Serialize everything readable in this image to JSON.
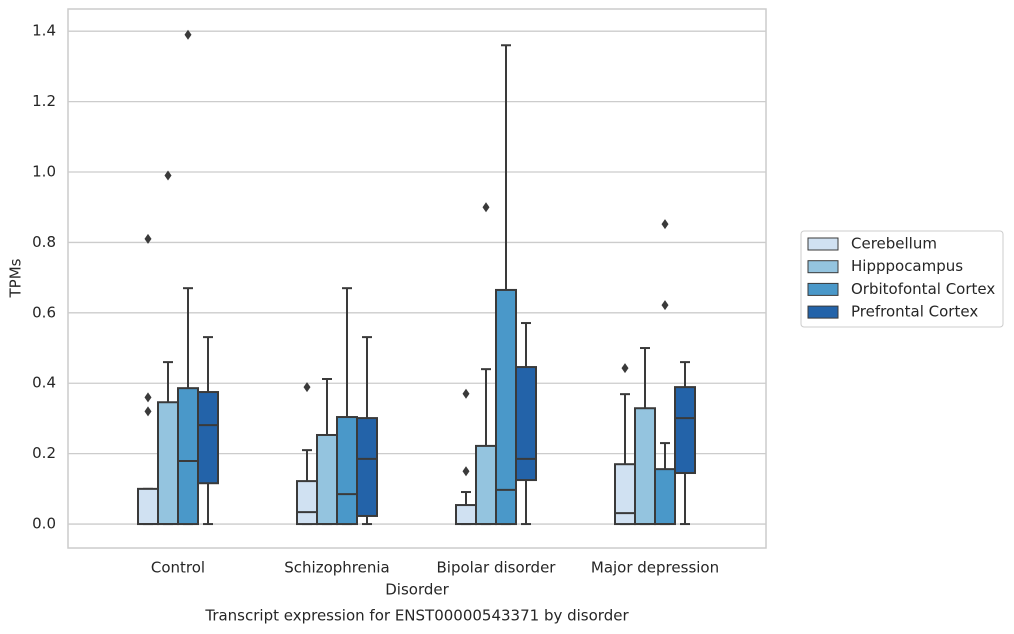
{
  "chart_data": {
    "type": "box",
    "title": "Transcript expression for ENST00000543371 by disorder",
    "x_label": "Disorder",
    "y_label": "TPMs",
    "categories": [
      "Control",
      "Schizophrenia",
      "Bipolar disorder",
      "Major depression"
    ],
    "ylim": [
      -0.068,
      1.463
    ],
    "yticks": [
      {
        "value": 0,
        "label": "0.0"
      },
      0.2,
      0.4,
      0.6,
      0.8,
      {
        "value": 1,
        "label": "1.0"
      },
      1.2,
      1.4
    ],
    "grid": true,
    "series": [
      {
        "name": "Cerebellum",
        "color": "#d0e1f2",
        "boxes": [
          {
            "min": 0,
            "q1": 0,
            "median": 0,
            "q3": 0.1,
            "max": 0.1,
            "outliers": [
              0.81,
              0.36,
              0.32
            ]
          },
          {
            "min": 0,
            "q1": 0,
            "median": 0.034,
            "q3": 0.122,
            "max": 0.21,
            "outliers": [
              0.389
            ]
          },
          {
            "min": 0,
            "q1": 0,
            "median": 0,
            "q3": 0.054,
            "max": 0.091,
            "outliers": [
              0.37,
              0.15
            ]
          },
          {
            "min": 0,
            "q1": 0,
            "median": 0.031,
            "q3": 0.17,
            "max": 0.369,
            "outliers": [
              0.443
            ]
          }
        ]
      },
      {
        "name": "Hipppocampus",
        "color": "#94c4df",
        "boxes": [
          {
            "min": 0,
            "q1": 0,
            "median": 0,
            "q3": 0.346,
            "max": 0.46,
            "outliers": [
              0.99
            ]
          },
          {
            "min": 0,
            "q1": 0,
            "median": 0,
            "q3": 0.253,
            "max": 0.412
          },
          {
            "min": 0,
            "q1": 0,
            "median": 0,
            "q3": 0.222,
            "max": 0.44,
            "outliers": [
              0.9
            ]
          },
          {
            "min": 0,
            "q1": 0,
            "median": 0,
            "q3": 0.329,
            "max": 0.5
          }
        ]
      },
      {
        "name": "Orbitofontal Cortex",
        "color": "#4a98c9",
        "boxes": [
          {
            "min": 0,
            "q1": 0,
            "median": 0.179,
            "q3": 0.386,
            "max": 0.67,
            "outliers": [
              1.39
            ]
          },
          {
            "min": 0,
            "q1": 0,
            "median": 0.085,
            "q3": 0.304,
            "max": 0.67
          },
          {
            "min": 0,
            "q1": 0,
            "median": 0.097,
            "q3": 0.665,
            "max": 1.36
          },
          {
            "min": 0,
            "q1": 0,
            "median": 0,
            "q3": 0.156,
            "max": 0.23,
            "outliers": [
              0.852,
              0.622
            ]
          }
        ]
      },
      {
        "name": "Prefrontal Cortex",
        "color": "#2363a9",
        "boxes": [
          {
            "min": 0,
            "q1": 0.116,
            "median": 0.281,
            "q3": 0.375,
            "max": 0.531
          },
          {
            "min": 0,
            "q1": 0.023,
            "median": 0.185,
            "q3": 0.301,
            "max": 0.531
          },
          {
            "min": 0,
            "q1": 0.125,
            "median": 0.185,
            "q3": 0.446,
            "max": 0.571
          },
          {
            "min": 0,
            "q1": 0.145,
            "median": 0.301,
            "q3": 0.389,
            "max": 0.46
          }
        ]
      }
    ]
  }
}
